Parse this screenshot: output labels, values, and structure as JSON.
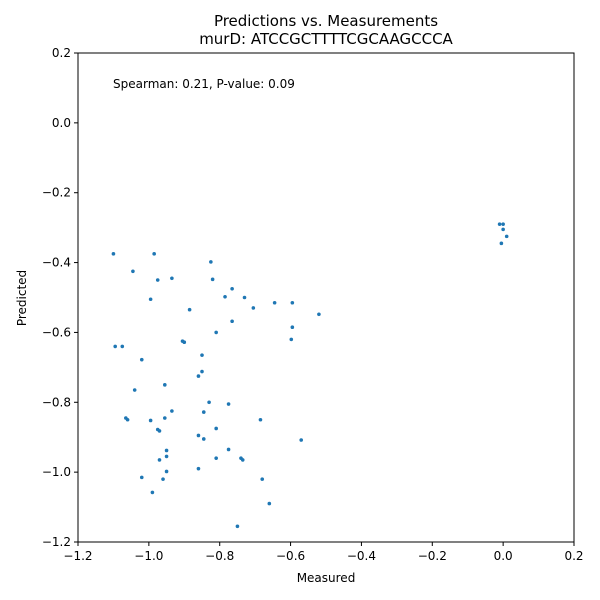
{
  "chart_data": {
    "type": "scatter",
    "title": "Predictions vs. Measurements",
    "subtitle": "murD: ATCCGCTTTTCGCAAGCCCA",
    "xlabel": "Measured",
    "ylabel": "Predicted",
    "xlim": [
      -1.2,
      0.2
    ],
    "ylim": [
      -1.2,
      0.2
    ],
    "xticks": [
      "−1.2",
      "−1.0",
      "−0.8",
      "−0.6",
      "−0.4",
      "−0.2",
      "0.0",
      "0.2"
    ],
    "yticks": [
      "−1.2",
      "−1.0",
      "−0.8",
      "−0.6",
      "−0.4",
      "−0.2",
      "0.0",
      "0.2"
    ],
    "annotation": "Spearman: 0.21, P-value: 0.09",
    "grid": false,
    "point_color": "#1f77b4",
    "points": [
      [
        -1.1,
        -0.375
      ],
      [
        -0.985,
        -0.375
      ],
      [
        -0.825,
        -0.398
      ],
      [
        -1.045,
        -0.425
      ],
      [
        -0.975,
        -0.45
      ],
      [
        -0.935,
        -0.445
      ],
      [
        -0.82,
        -0.448
      ],
      [
        -0.765,
        -0.475
      ],
      [
        -0.785,
        -0.498
      ],
      [
        -0.73,
        -0.5
      ],
      [
        -0.995,
        -0.505
      ],
      [
        -0.645,
        -0.515
      ],
      [
        -0.595,
        -0.515
      ],
      [
        -0.885,
        -0.535
      ],
      [
        -0.705,
        -0.53
      ],
      [
        -0.52,
        -0.548
      ],
      [
        -0.765,
        -0.568
      ],
      [
        -0.595,
        -0.585
      ],
      [
        -0.81,
        -0.6
      ],
      [
        -0.598,
        -0.62
      ],
      [
        -0.905,
        -0.625
      ],
      [
        -0.9,
        -0.628
      ],
      [
        -1.095,
        -0.64
      ],
      [
        -1.075,
        -0.64
      ],
      [
        -0.85,
        -0.665
      ],
      [
        -1.02,
        -0.678
      ],
      [
        -0.85,
        -0.712
      ],
      [
        -0.86,
        -0.725
      ],
      [
        -0.955,
        -0.75
      ],
      [
        -1.04,
        -0.765
      ],
      [
        -0.83,
        -0.8
      ],
      [
        -0.775,
        -0.805
      ],
      [
        -0.935,
        -0.825
      ],
      [
        -0.845,
        -0.828
      ],
      [
        -0.955,
        -0.845
      ],
      [
        -1.065,
        -0.845
      ],
      [
        -1.06,
        -0.85
      ],
      [
        -0.995,
        -0.852
      ],
      [
        -0.685,
        -0.85
      ],
      [
        -0.975,
        -0.878
      ],
      [
        -0.97,
        -0.882
      ],
      [
        -0.81,
        -0.875
      ],
      [
        -0.86,
        -0.895
      ],
      [
        -0.845,
        -0.905
      ],
      [
        -0.57,
        -0.908
      ],
      [
        -0.95,
        -0.938
      ],
      [
        -0.775,
        -0.935
      ],
      [
        -0.95,
        -0.955
      ],
      [
        -0.97,
        -0.965
      ],
      [
        -0.81,
        -0.96
      ],
      [
        -0.74,
        -0.96
      ],
      [
        -0.735,
        -0.965
      ],
      [
        -0.86,
        -0.99
      ],
      [
        -0.95,
        -0.998
      ],
      [
        -1.02,
        -1.015
      ],
      [
        -0.96,
        -1.02
      ],
      [
        -0.68,
        -1.02
      ],
      [
        -0.99,
        -1.058
      ],
      [
        -0.66,
        -1.09
      ],
      [
        -0.75,
        -1.155
      ],
      [
        -0.01,
        -0.29
      ],
      [
        0.0,
        -0.29
      ],
      [
        0.0,
        -0.305
      ],
      [
        0.01,
        -0.325
      ],
      [
        -0.005,
        -0.345
      ]
    ]
  }
}
